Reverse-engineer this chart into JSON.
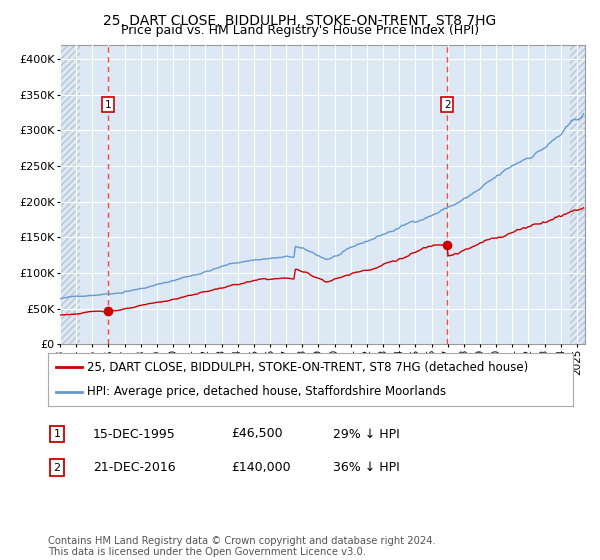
{
  "title": "25, DART CLOSE, BIDDULPH, STOKE-ON-TRENT, ST8 7HG",
  "subtitle": "Price paid vs. HM Land Registry's House Price Index (HPI)",
  "legend_line1": "25, DART CLOSE, BIDDULPH, STOKE-ON-TRENT, ST8 7HG (detached house)",
  "legend_line2": "HPI: Average price, detached house, Staffordshire Moorlands",
  "annotation1_label": "1",
  "annotation1_date": "15-DEC-1995",
  "annotation1_price": "£46,500",
  "annotation1_hpi": "29% ↓ HPI",
  "annotation2_label": "2",
  "annotation2_date": "21-DEC-2016",
  "annotation2_price": "£140,000",
  "annotation2_hpi": "36% ↓ HPI",
  "purchase1_year": 1995.96,
  "purchase1_price": 46500,
  "purchase2_year": 2016.97,
  "purchase2_price": 140000,
  "ylabel_ticks": [
    "£0",
    "£50K",
    "£100K",
    "£150K",
    "£200K",
    "£250K",
    "£300K",
    "£350K",
    "£400K"
  ],
  "ylabel_values": [
    0,
    50000,
    100000,
    150000,
    200000,
    250000,
    300000,
    350000,
    400000
  ],
  "xmin": 1993.0,
  "xmax": 2025.5,
  "ymin": 0,
  "ymax": 420000,
  "red_color": "#cc0000",
  "blue_color": "#6699cc",
  "bg_color": "#dce9f5",
  "hatch_color": "#aab4c4",
  "grid_color": "#ffffff",
  "dashed_line_color": "#ff4444",
  "footer_text": "Contains HM Land Registry data © Crown copyright and database right 2024.\nThis data is licensed under the Open Government Licence v3.0.",
  "title_fontsize": 10,
  "subtitle_fontsize": 9,
  "tick_fontsize": 8,
  "legend_fontsize": 8.5
}
